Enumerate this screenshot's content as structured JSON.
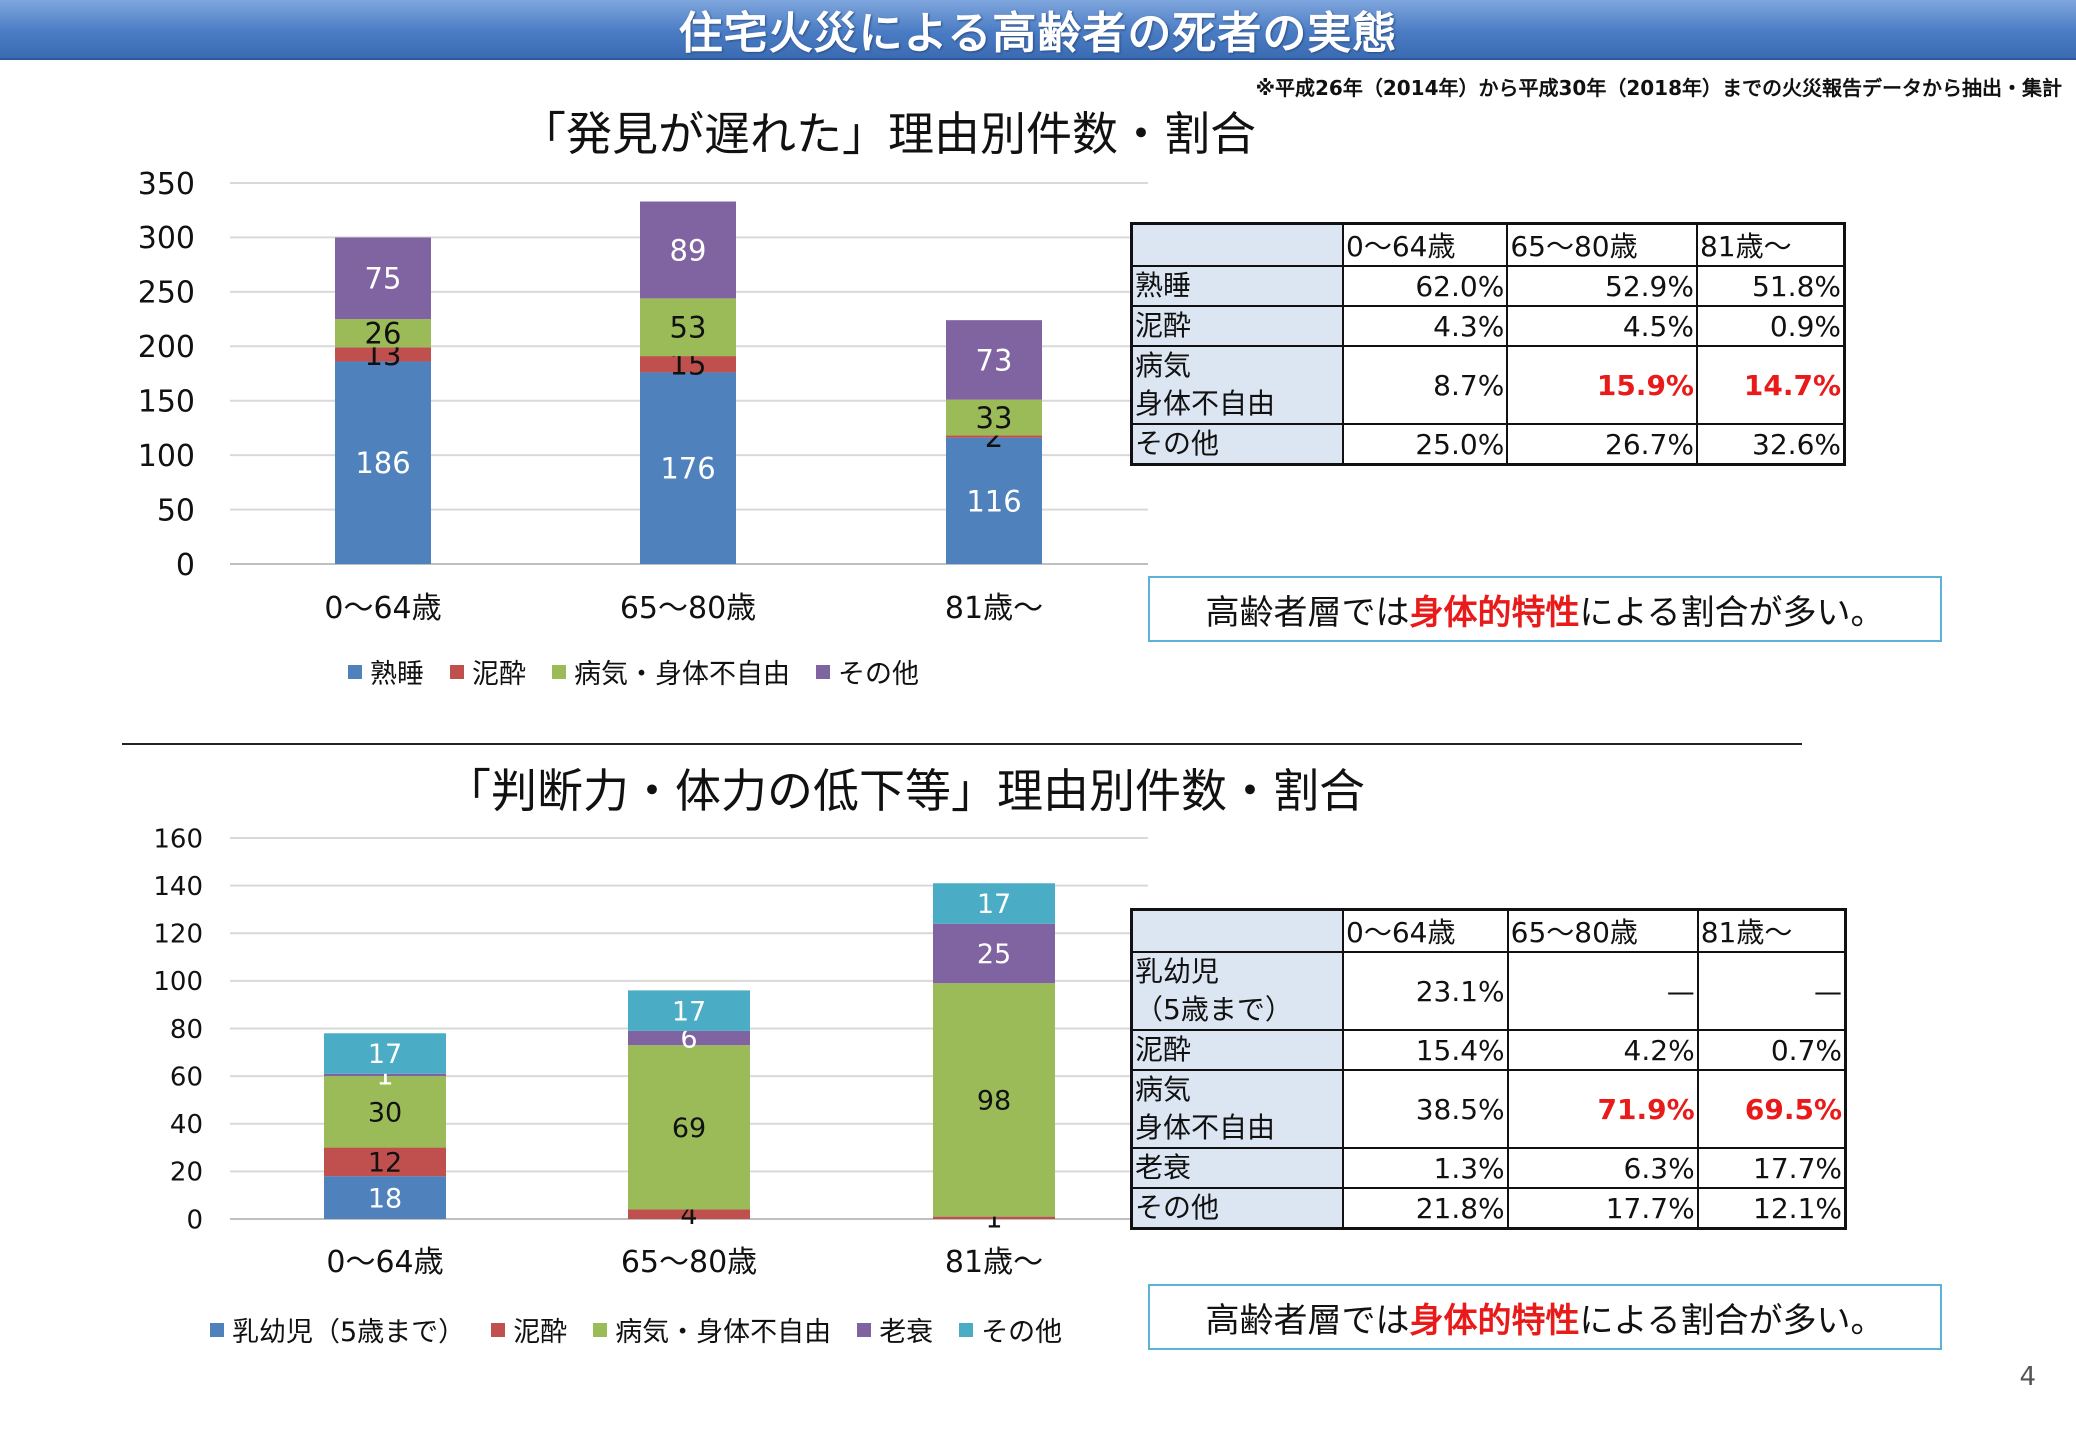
{
  "slide": {
    "title": "住宅火災による高齢者の死者の実態",
    "source_note": "※平成26年（2014年）から平成30年（2018年）までの火災報告データから抽出・集計",
    "page_number": "4"
  },
  "callout": {
    "prefix": "高齢者層では",
    "highlight": "身体的特性",
    "suffix": "による割合が多い。"
  },
  "chart_data": [
    {
      "type": "bar",
      "stacked": true,
      "title": "「発見が遅れた」理由別件数・割合",
      "categories": [
        "0～64歳",
        "65～80歳",
        "81歳～"
      ],
      "ylim": [
        0,
        350
      ],
      "yticks": [
        0,
        50,
        100,
        150,
        200,
        250,
        300,
        350
      ],
      "grid": true,
      "legend_position": "bottom",
      "series": [
        {
          "name": "熟睡",
          "color": "#4f81bd",
          "values": [
            186,
            176,
            116
          ]
        },
        {
          "name": "泥酔",
          "color": "#c0504d",
          "values": [
            13,
            15,
            2
          ]
        },
        {
          "name": "病気・身体不自由",
          "color": "#9bbb59",
          "values": [
            26,
            53,
            33
          ]
        },
        {
          "name": "その他",
          "color": "#8064a2",
          "values": [
            75,
            89,
            73
          ]
        }
      ]
    },
    {
      "type": "bar",
      "stacked": true,
      "title": "「判断力・体力の低下等」理由別件数・割合",
      "categories": [
        "0～64歳",
        "65～80歳",
        "81歳～"
      ],
      "ylim": [
        0,
        160
      ],
      "yticks": [
        0,
        20,
        40,
        60,
        80,
        100,
        120,
        140,
        160
      ],
      "grid": true,
      "legend_position": "bottom",
      "series": [
        {
          "name": "乳幼児（5歳まで）",
          "color": "#4f81bd",
          "values": [
            18,
            null,
            null
          ]
        },
        {
          "name": "泥酔",
          "color": "#c0504d",
          "values": [
            12,
            4,
            1
          ]
        },
        {
          "name": "病気・身体不自由",
          "color": "#9bbb59",
          "values": [
            30,
            69,
            98
          ]
        },
        {
          "name": "老衰",
          "color": "#8064a2",
          "values": [
            1,
            6,
            25
          ]
        },
        {
          "name": "その他",
          "color": "#4bacc6",
          "values": [
            17,
            17,
            17
          ]
        }
      ]
    }
  ],
  "tables": [
    {
      "headers": [
        "0～64歳",
        "65～80歳",
        "81歳～"
      ],
      "rows": [
        {
          "label": [
            "熟睡"
          ],
          "values": [
            "62.0%",
            "52.9%",
            "51.8%"
          ],
          "highlight": [
            false,
            false,
            false
          ]
        },
        {
          "label": [
            "泥酔"
          ],
          "values": [
            "4.3%",
            "4.5%",
            "0.9%"
          ],
          "highlight": [
            false,
            false,
            false
          ]
        },
        {
          "label": [
            "病気",
            "身体不自由"
          ],
          "values": [
            "8.7%",
            "15.9%",
            "14.7%"
          ],
          "highlight": [
            false,
            true,
            true
          ]
        },
        {
          "label": [
            "その他"
          ],
          "values": [
            "25.0%",
            "26.7%",
            "32.6%"
          ],
          "highlight": [
            false,
            false,
            false
          ]
        }
      ]
    },
    {
      "headers": [
        "0～64歳",
        "65～80歳",
        "81歳～"
      ],
      "rows": [
        {
          "label": [
            "乳幼児",
            "（5歳まで）"
          ],
          "values": [
            "23.1%",
            "—",
            "—"
          ],
          "highlight": [
            false,
            false,
            false
          ]
        },
        {
          "label": [
            "泥酔"
          ],
          "values": [
            "15.4%",
            "4.2%",
            "0.7%"
          ],
          "highlight": [
            false,
            false,
            false
          ]
        },
        {
          "label": [
            "病気",
            "身体不自由"
          ],
          "values": [
            "38.5%",
            "71.9%",
            "69.5%"
          ],
          "highlight": [
            false,
            true,
            true
          ]
        },
        {
          "label": [
            "老衰"
          ],
          "values": [
            "1.3%",
            "6.3%",
            "17.7%"
          ],
          "highlight": [
            false,
            false,
            false
          ]
        },
        {
          "label": [
            "その他"
          ],
          "values": [
            "21.8%",
            "17.7%",
            "12.1%"
          ],
          "highlight": [
            false,
            false,
            false
          ]
        }
      ]
    }
  ]
}
